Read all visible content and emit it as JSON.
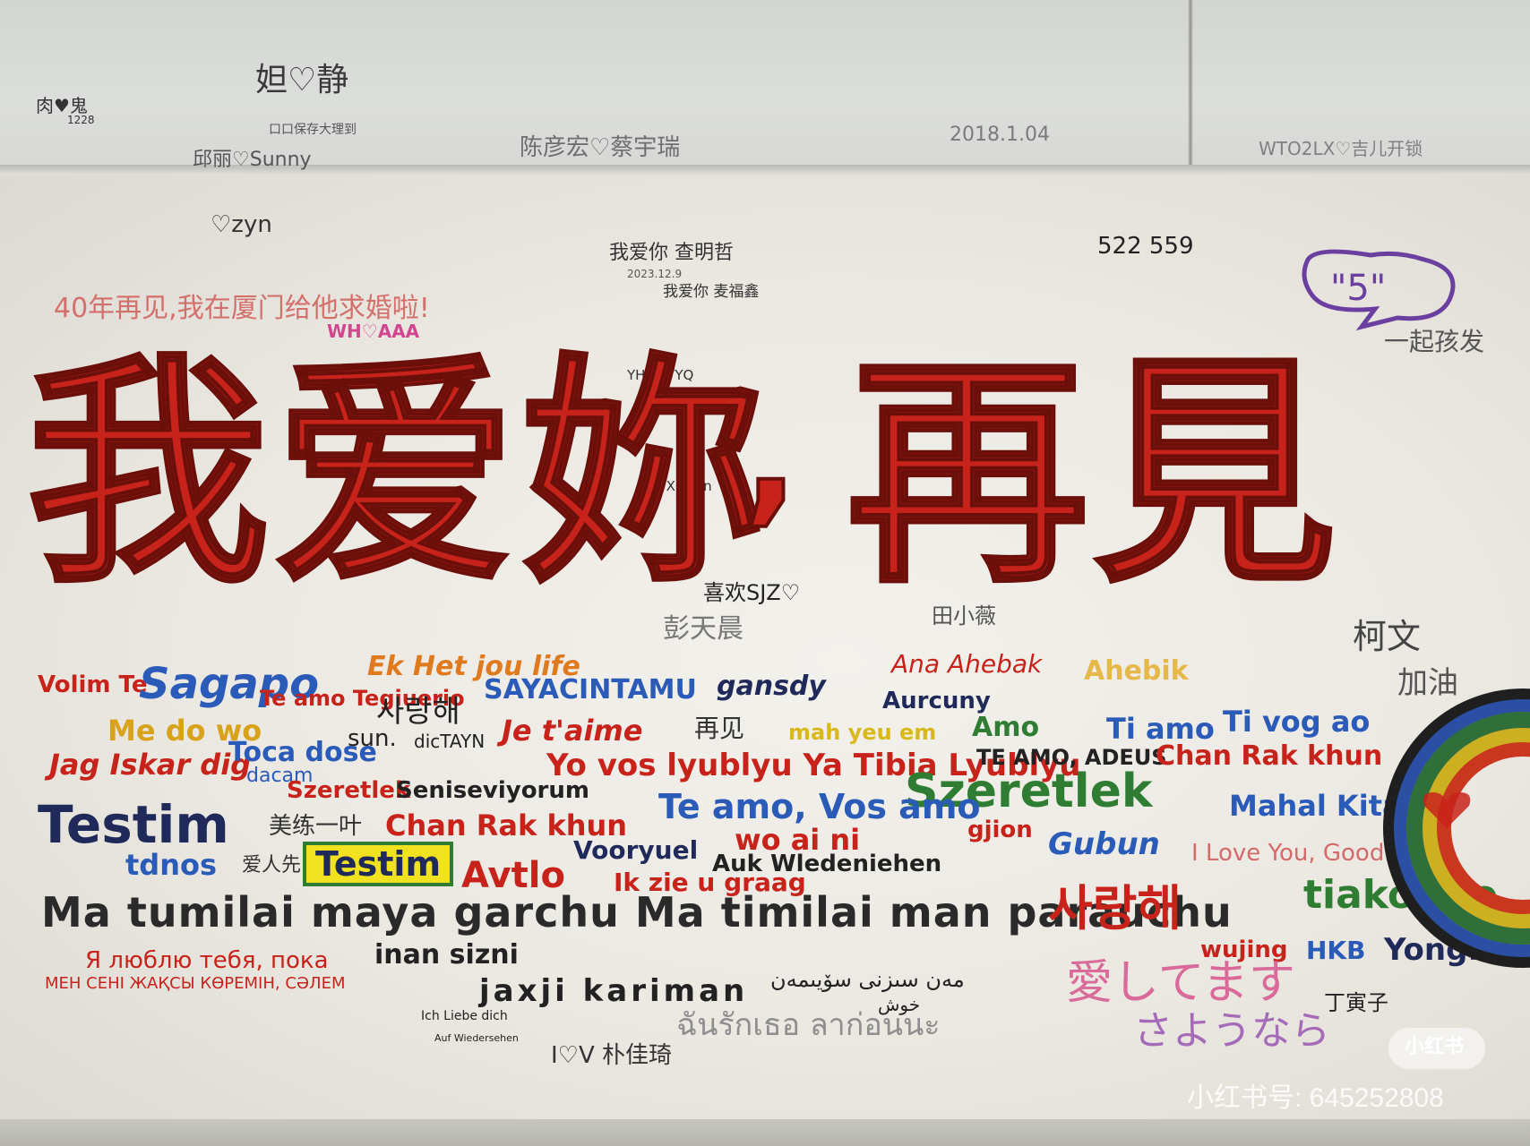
{
  "colors": {
    "red": "#c8231b",
    "navy": "#1f2a5a",
    "blue": "#2b5bb8",
    "green": "#2e7d32",
    "orange": "#e07a1f",
    "yellow_tag": "#f0e21e",
    "purple": "#6a3fa0",
    "pink": "#d96a9a",
    "dark": "#2a2a2a"
  },
  "main_title": {
    "part1": "我爱妳",
    "comma": ",",
    "part2": "再見"
  },
  "upper_wall": {
    "notes": [
      "肉♥鬼",
      "1228",
      "妲♡静",
      "口口保存大理到",
      "邱丽♡Sunny",
      "陈彦宏♡蔡宇瑞",
      "2018.1.04",
      "WTO2LX♡吉儿开锁"
    ]
  },
  "scribbles": {
    "zyn": "♡zyn",
    "date_a": "2023.12.9",
    "wo_ai_ni": "我爱你 查明哲",
    "wo_ai_ni_2": "我爱你 麦福鑫",
    "forty_years": "40年再见,我在厦门给他求婚啦!",
    "wh": "WH♡AAA",
    "numbers": "522 559",
    "yhb": "YHB♡YYQ",
    "jyx": "JYX♡yyn",
    "xihuan": "喜欢SJZ♡",
    "peng": "彭天晨",
    "tian": "田小薇",
    "ke": "柯文",
    "jiayou": "加油",
    "yiqi": "一起孩发",
    "ding": "丁寅子",
    "ilove": "I♡V 朴佳琦",
    "ich": "Ich Liebe dich",
    "auf": "Auf Wiedersehen"
  },
  "languages": {
    "volim": "Volim Te",
    "sagapo": "Sagapo",
    "ek": "Ek Het jou life",
    "teamo_te": "Te amo Tegiuerio",
    "saranghe_small": "사랑해",
    "sayacintamu": "SAYACINTAMU",
    "gansdy": "gansdy",
    "ana": "Ana Ahebak",
    "aureuny": "Aurcuny",
    "ahebik": "Ahebik",
    "medo": "Me do wo",
    "jag": "Jag Iskar dig",
    "toca": "Toca dose",
    "dacam": "dacam",
    "sun": "sun.",
    "dictayn": "dicTAYN",
    "jetaime": "Je t'aime",
    "zaijian": "再见",
    "wo_yah": "mah yeu em",
    "amo": "Amo",
    "tiamo": "Ti amo",
    "tivogao": "Ti vog ao",
    "yovos": "Yo vos lyublyu Ya Tibia Lyublyu",
    "teamoadeus": "TE AMO, ADEUS",
    "chanrak_right": "Chan Rak khun",
    "szeretlek_small": "Szeretlek",
    "seni": "Seniseviyorum",
    "szeretlek_big": "Szeretlek",
    "testim": "Testim",
    "mei": "美练一叶",
    "chanrak_mid": "Chan Rak khun",
    "teamovos": "Te amo, Vos amo",
    "woaini": "wo ai ni",
    "gjion": "gjion",
    "mahal": "Mahal Kita",
    "tdnos": "tdnos",
    "aixian": "爱人先",
    "testim_tag": "Testim",
    "avtlo": "Avtlo",
    "voorwel": "Vooryuel",
    "ikzie": "Ik zie u graag",
    "auk": "Auk Wledeniehen",
    "gubun": "Gubun",
    "ilovegoodbye": "I Love You, GoodBye",
    "tiakouno": "tiakouno",
    "ma_tumilai": "Ma tumilai maya garchu Ma timilai man parauchu",
    "saranghe_big": "사랑해",
    "russian": "Я люблю тебя, пока",
    "inan": "inan  sizni",
    "wujing": "wujing",
    "hkb": "HKB",
    "yongfei": "Yongfei",
    "kazakh": "МЕН СЕНІ ЖАҚСЫ КӨРЕМІН, СӘЛЕМ",
    "jaxji": "jaxji  kariman",
    "uyghur": "مەن سىزنى سۆيىمەن",
    "uyghur2": "خوش",
    "japanese1": "愛してます",
    "japanese2": "さようなら",
    "thai": "ฉันรักเธอ ลาก่อนนะ"
  },
  "watermark": {
    "logo": "小红书",
    "id": "小红书号: 645252808"
  }
}
